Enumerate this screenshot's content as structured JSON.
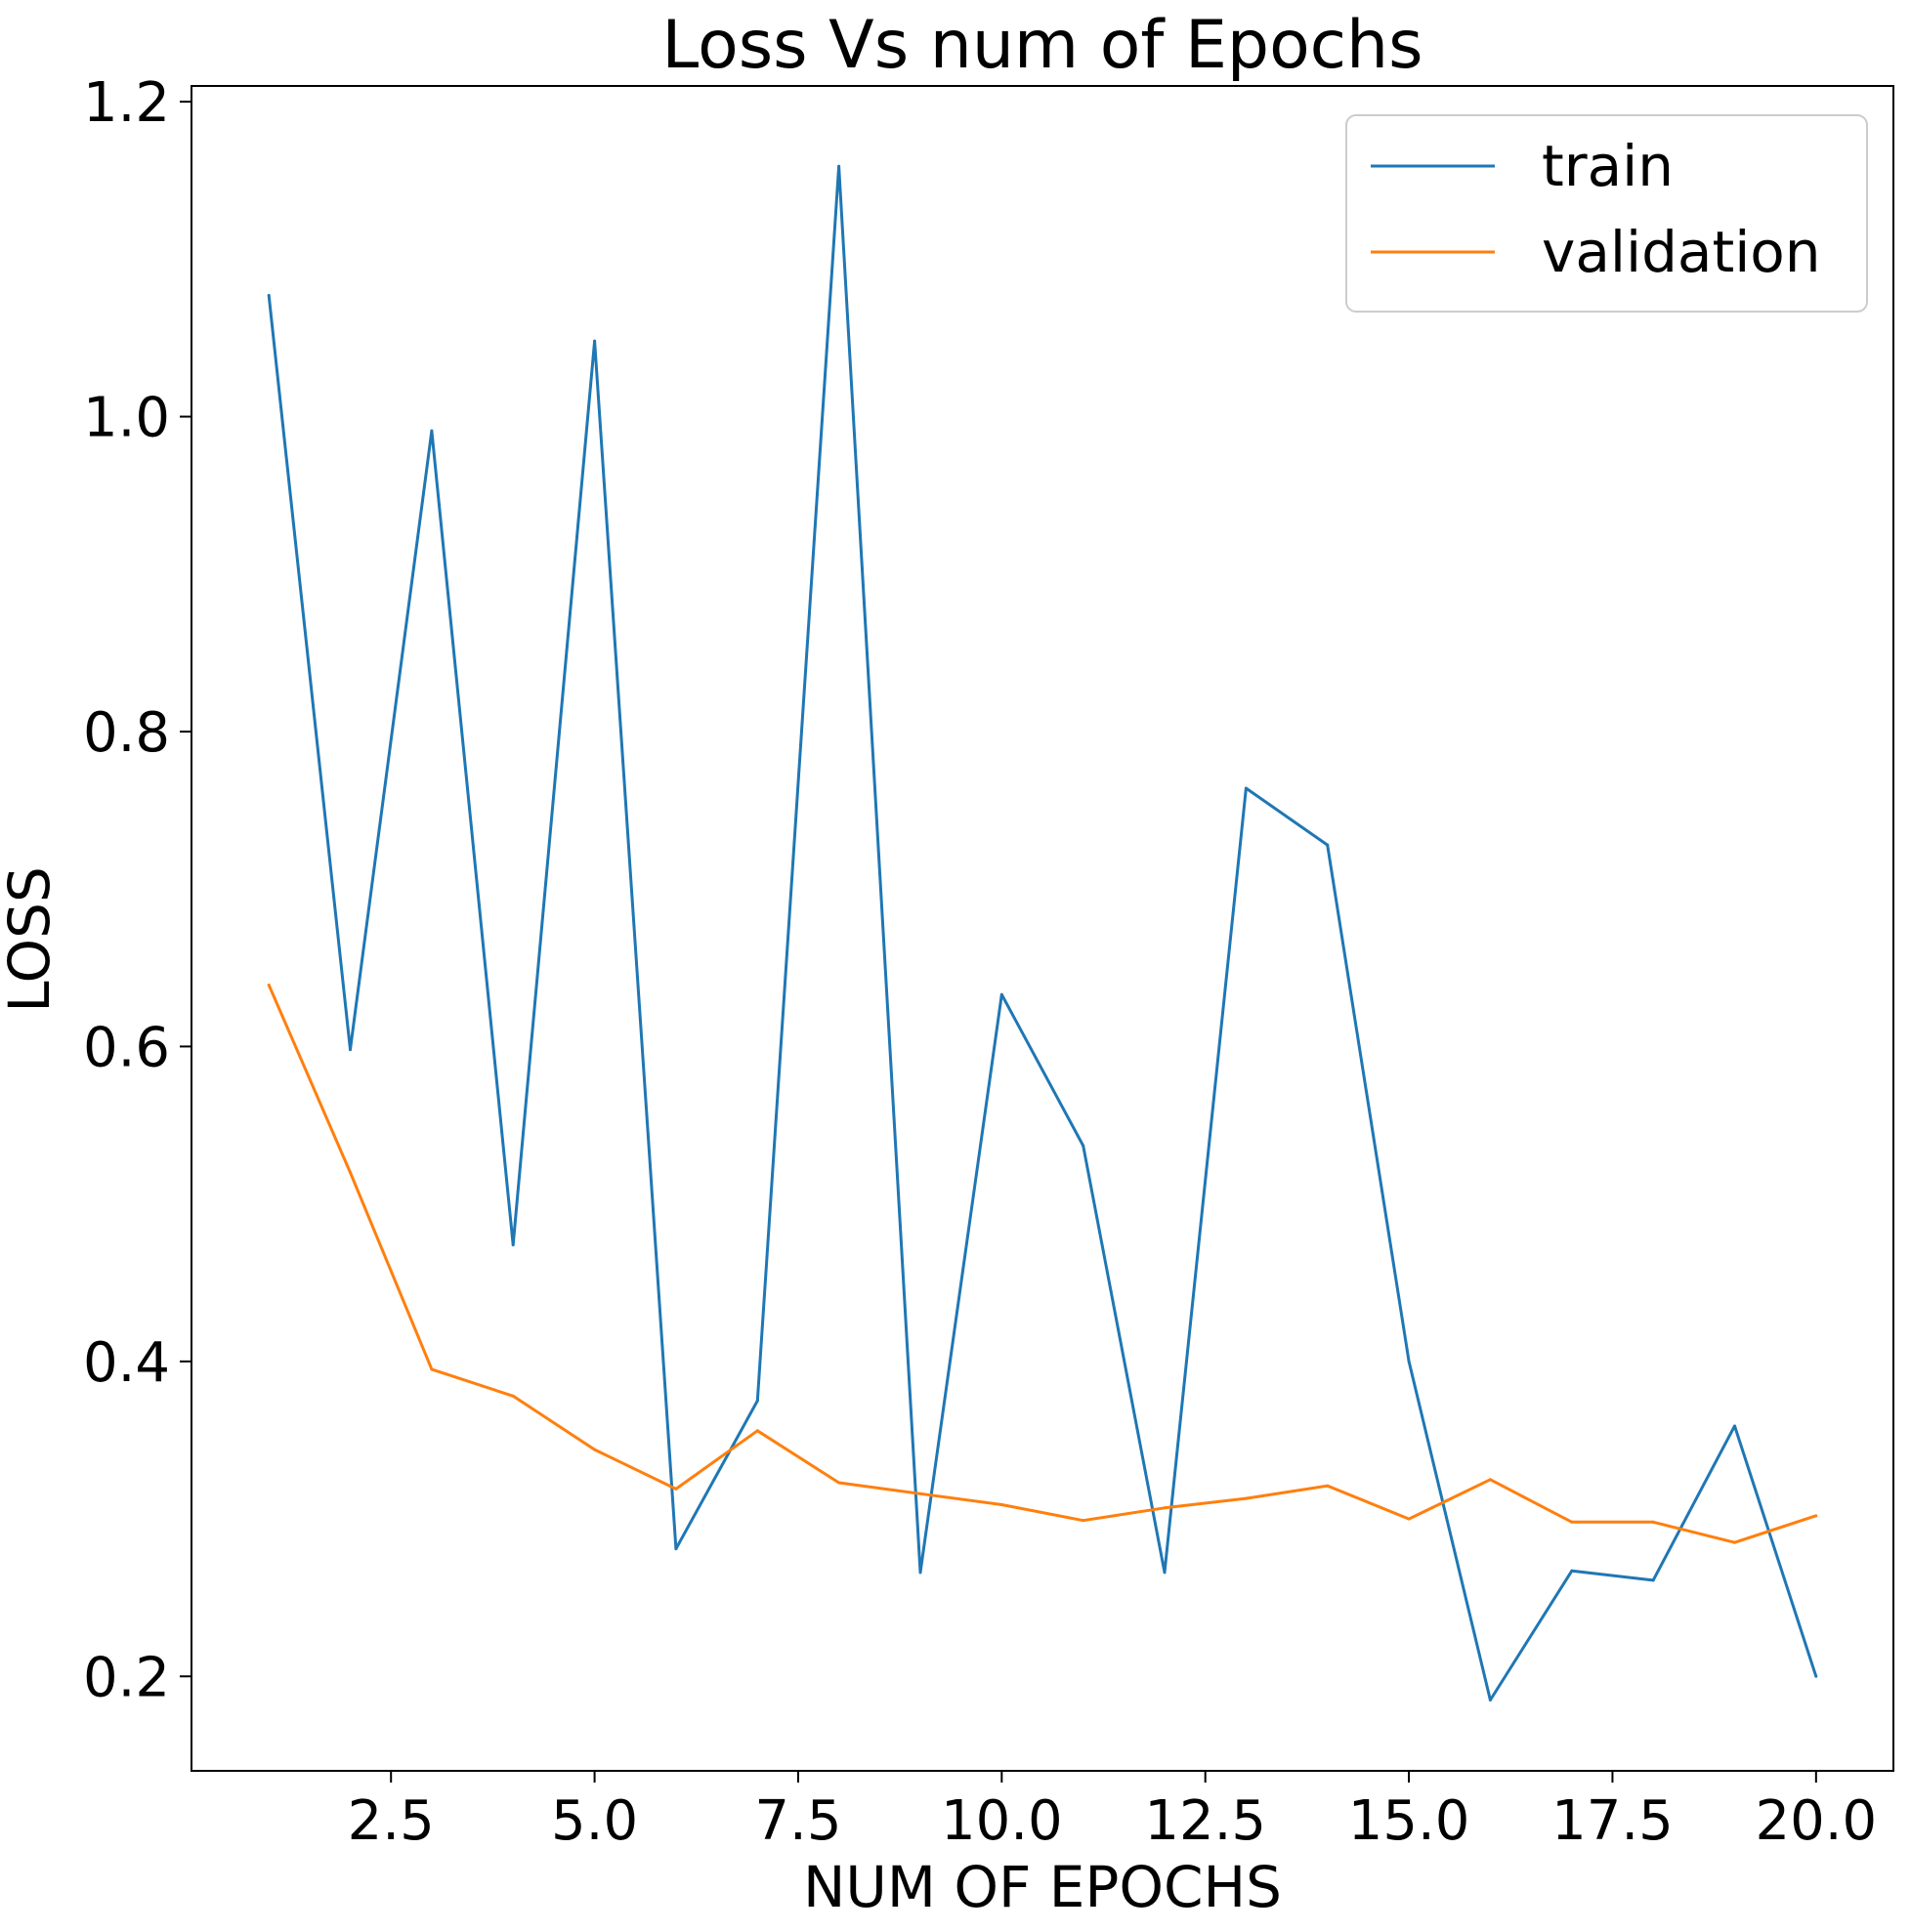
{
  "chart_data": {
    "type": "line",
    "title": "Loss Vs num of Epochs",
    "xlabel": "NUM OF EPOCHS",
    "ylabel": "LOSS",
    "xlim": [
      0.05,
      20.95
    ],
    "ylim": [
      0.14,
      1.21
    ],
    "xticks": [
      2.5,
      5.0,
      7.5,
      10.0,
      12.5,
      15.0,
      17.5,
      20.0
    ],
    "xtick_labels": [
      "2.5",
      "5.0",
      "7.5",
      "10.0",
      "12.5",
      "15.0",
      "17.5",
      "20.0"
    ],
    "yticks": [
      0.2,
      0.4,
      0.6,
      0.8,
      1.0,
      1.2
    ],
    "ytick_labels": [
      "0.2",
      "0.4",
      "0.6",
      "0.8",
      "1.0",
      "1.2"
    ],
    "grid": false,
    "legend_position": "top-right",
    "x": [
      1,
      2,
      3,
      4,
      5,
      6,
      7,
      8,
      9,
      10,
      11,
      12,
      13,
      14,
      15,
      16,
      17,
      18,
      19,
      20
    ],
    "series": [
      {
        "name": "train",
        "color": "#1f77b4",
        "values": [
          1.077,
          0.598,
          0.991,
          0.474,
          1.048,
          0.281,
          0.375,
          1.159,
          0.266,
          0.633,
          0.537,
          0.266,
          0.764,
          0.728,
          0.4,
          0.185,
          0.267,
          0.261,
          0.359,
          0.2
        ]
      },
      {
        "name": "validation",
        "color": "#ff7f0e",
        "values": [
          0.639,
          0.52,
          0.395,
          0.378,
          0.344,
          0.319,
          0.356,
          0.323,
          0.316,
          0.309,
          0.299,
          0.307,
          0.313,
          0.321,
          0.3,
          0.325,
          0.298,
          0.298,
          0.285,
          0.302
        ]
      }
    ]
  }
}
